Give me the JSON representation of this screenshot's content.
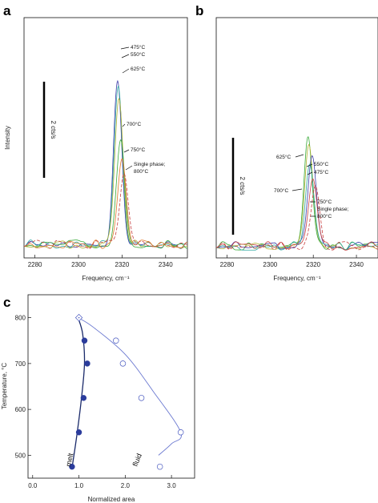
{
  "panels": [
    {
      "label": "a"
    },
    {
      "label": "b"
    },
    {
      "label": "c"
    }
  ],
  "chart_data": [
    {
      "id": "a",
      "type": "line",
      "xlabel": "Frequency, cm⁻¹",
      "ylabel": "Intensity",
      "xlim": [
        2275,
        2350
      ],
      "xticks": [
        2280,
        2300,
        2320,
        2340
      ],
      "xtick_labels": [
        "2280",
        "2300",
        "2320",
        "2340"
      ],
      "scale_bar_label": "2 cts/s",
      "scale_bar_counts": 2,
      "series": [
        {
          "name": "475°C",
          "color": "#3a3aa8",
          "dash": "",
          "center": 2318.0,
          "width": 1.9,
          "peak": 3.35
        },
        {
          "name": "550°C",
          "color": "#2aa8a0",
          "dash": "",
          "center": 2318.3,
          "width": 1.9,
          "peak": 3.25
        },
        {
          "name": "625°C",
          "color": "#b0b030",
          "dash": "",
          "center": 2318.6,
          "width": 1.9,
          "peak": 3.0
        },
        {
          "name": "700°C",
          "color": "#3aaa3a",
          "dash": "",
          "center": 2319.4,
          "width": 1.9,
          "peak": 2.15
        },
        {
          "name": "750°C",
          "color": "#e07828",
          "dash": "",
          "center": 2320.0,
          "width": 1.9,
          "peak": 1.75
        },
        {
          "name": "Single phase; 800°C",
          "color": "#c84040",
          "dash": "4,2",
          "center": 2321.0,
          "width": 1.9,
          "peak": 1.45
        }
      ],
      "annotations": [
        {
          "text": "475°C"
        },
        {
          "text": "550°C"
        },
        {
          "text": "625°C"
        },
        {
          "text": "700°C"
        },
        {
          "text": "750°C"
        },
        {
          "text": "Single phase;"
        },
        {
          "text": "800°C"
        }
      ]
    },
    {
      "id": "b",
      "type": "line",
      "xlabel": "Frequency, cm⁻¹",
      "ylabel": "",
      "xlim": [
        2275,
        2350
      ],
      "xticks": [
        2280,
        2300,
        2320,
        2340
      ],
      "xtick_labels": [
        "2280",
        "2300",
        "2320",
        "2340"
      ],
      "scale_bar_label": "2 cts/s",
      "scale_bar_counts": 2,
      "series": [
        {
          "name": "625°C",
          "color": "#3aaa3a",
          "dash": "",
          "center": 2317.6,
          "width": 1.9,
          "peak": 2.2
        },
        {
          "name": "550°C",
          "color": "#b0b030",
          "dash": "",
          "center": 2318.0,
          "width": 1.9,
          "peak": 2.05
        },
        {
          "name": "475°C",
          "color": "#3a3aa8",
          "dash": "",
          "center": 2319.5,
          "width": 1.9,
          "peak": 1.85
        },
        {
          "name": "700°C",
          "color": "#2aa8a0",
          "dash": "",
          "center": 2318.4,
          "width": 1.9,
          "peak": 1.65
        },
        {
          "name": "750°C",
          "color": "#c84040",
          "dash": "",
          "center": 2319.8,
          "width": 1.9,
          "peak": 1.35
        },
        {
          "name": "Single phase; 800°C",
          "color": "#c84040",
          "dash": "4,2",
          "center": 2321.0,
          "width": 1.9,
          "peak": 1.2
        }
      ],
      "annotations": [
        {
          "text": "625°C"
        },
        {
          "text": "550°C"
        },
        {
          "text": "475°C"
        },
        {
          "text": "700°C"
        },
        {
          "text": "750°C"
        },
        {
          "text": "Single phase;"
        },
        {
          "text": "800°C"
        }
      ]
    },
    {
      "id": "c",
      "type": "scatter",
      "xlabel": "Normalized area",
      "ylabel": "Temperature, °C",
      "xlim": [
        -0.1,
        3.5
      ],
      "ylim": [
        450,
        850
      ],
      "xticks": [
        0.0,
        1.0,
        2.0,
        3.0
      ],
      "xtick_labels": [
        "0.0",
        "1.0",
        "2.0",
        "3.0"
      ],
      "yticks": [
        500,
        600,
        700,
        800
      ],
      "ytick_labels": [
        "500",
        "600",
        "700",
        "800"
      ],
      "series": [
        {
          "name": "melt",
          "marker": "filled-circle",
          "color": "#2b3c9c",
          "points": [
            {
              "x": 0.85,
              "y": 475
            },
            {
              "x": 1.0,
              "y": 550
            },
            {
              "x": 1.1,
              "y": 625
            },
            {
              "x": 1.18,
              "y": 700
            },
            {
              "x": 1.12,
              "y": 750
            }
          ],
          "curve": [
            [
              0.85,
              472
            ],
            [
              0.95,
              540
            ],
            [
              1.05,
              620
            ],
            [
              1.12,
              700
            ],
            [
              1.08,
              765
            ],
            [
              0.98,
              800
            ]
          ]
        },
        {
          "name": "fluid",
          "marker": "open-circle",
          "color": "#4a5ac0",
          "points": [
            {
              "x": 2.75,
              "y": 475
            },
            {
              "x": 3.2,
              "y": 550
            },
            {
              "x": 2.35,
              "y": 625
            },
            {
              "x": 1.95,
              "y": 700
            },
            {
              "x": 1.8,
              "y": 750
            }
          ],
          "curve": [
            [
              2.72,
              500
            ],
            [
              3.0,
              525
            ],
            [
              3.2,
              550
            ],
            [
              2.6,
              640
            ],
            [
              2.0,
              720
            ],
            [
              1.3,
              780
            ],
            [
              0.98,
              800
            ]
          ]
        },
        {
          "name": "Single phase; 800°C",
          "marker": "open-diamond",
          "color": "#4a5ac0",
          "points": [
            {
              "x": 1.0,
              "y": 800
            }
          ]
        }
      ],
      "annotations": [
        {
          "text": "melt"
        },
        {
          "text": "fluid"
        }
      ]
    }
  ]
}
